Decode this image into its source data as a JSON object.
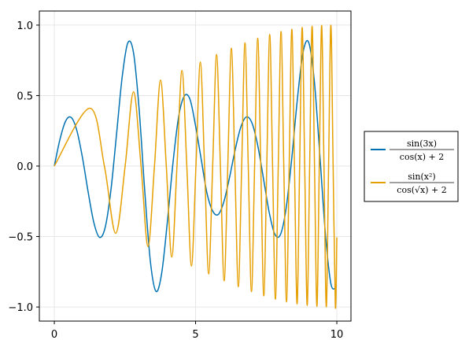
{
  "chart_data": {
    "type": "line",
    "grid": true,
    "xlim": [
      -0.53,
      10.5
    ],
    "ylim": [
      -1.1,
      1.1
    ],
    "xticks": [
      0,
      5,
      10
    ],
    "yticks": [
      {
        "value": 1.0,
        "label": "1.0"
      },
      {
        "value": 0.5,
        "label": "0.5"
      },
      {
        "value": 0.0,
        "label": "0.0"
      },
      {
        "value": -0.5,
        "label": "−0.5"
      },
      {
        "value": -1.0,
        "label": "−1.0"
      }
    ],
    "legend": "right",
    "series": [
      {
        "name": {
          "numerator": "sin(3x)",
          "denominator": "cos(x) + 2"
        },
        "color": "#0072b2",
        "x": [
          0,
          0.2,
          0.4,
          0.6,
          0.8,
          1.0,
          1.2,
          1.4,
          1.6,
          1.8,
          2.0,
          2.2,
          2.4,
          2.6,
          2.8,
          3.0,
          3.2,
          3.4,
          3.6,
          3.8,
          4.0,
          4.2,
          4.4,
          4.6,
          4.8,
          5.0,
          5.2,
          5.4,
          5.6,
          5.8,
          6.0,
          6.2,
          6.4,
          6.6,
          6.8,
          7.0,
          7.2,
          7.4,
          7.6,
          7.8,
          8.0,
          8.2,
          8.4,
          8.6,
          8.8,
          9.0,
          9.2,
          9.4,
          9.6,
          9.8,
          10.0
        ],
        "values": [
          0,
          0.1895,
          0.3191,
          0.3447,
          0.2505,
          0.0556,
          -0.1873,
          -0.4017,
          -0.5055,
          -0.4359,
          -0.1764,
          0.2207,
          0.6286,
          0.8735,
          0.8079,
          0.408,
          -0.174,
          -0.6774,
          -0.8891,
          -0.7604,
          -0.3985,
          0.0223,
          0.3498,
          0.4961,
          0.475,
          0.2848,
          0.0472,
          -0.1894,
          -0.3169,
          -0.344,
          -0.2537,
          -0.0826,
          0.1146,
          0.2757,
          0.3484,
          0.3037,
          0.1463,
          -0.0848,
          -0.3224,
          -0.4804,
          -0.4877,
          -0.3068,
          0.0451,
          0.4682,
          0.8027,
          0.8783,
          0.6091,
          0.0745,
          -0.4928,
          -0.8446,
          -0.8512
        ]
      },
      {
        "name": {
          "numerator": "sin(x²)",
          "denominator": "cos(√x) + 2"
        },
        "color": "#e69f00",
        "x": [
          0,
          1.2533,
          1.7725,
          2.1708,
          2.5066,
          2.8025,
          3.07,
          3.316,
          3.5449,
          3.7599,
          3.9633,
          4.1568,
          4.3417,
          4.5189,
          4.6895,
          4.8541,
          5.0133,
          5.1676,
          5.3174,
          5.4631,
          5.605,
          5.7434,
          5.8786,
          6.0107,
          6.14,
          6.2666,
          6.3907,
          6.5124,
          6.6319,
          6.7493,
          6.8647,
          6.9782,
          7.0898,
          7.1997,
          7.308,
          7.4147,
          7.5199,
          7.6236,
          7.7259,
          7.8269,
          7.9267,
          8.0251,
          8.1224,
          8.2185,
          8.3135,
          8.4075,
          8.5004,
          8.5923,
          8.6832,
          8.7732,
          8.8623,
          8.9505,
          9.0378,
          9.1243,
          9.21,
          9.2949,
          9.3789,
          9.4623,
          9.5449,
          9.6269,
          9.7081,
          9.7887,
          9.8686,
          9.9479,
          10.0
        ],
        "values": [
          0,
          0.4104,
          0,
          -0.4768,
          0,
          0.5271,
          0,
          -0.5706,
          0,
          0.6097,
          0,
          -0.6456,
          0,
          0.6788,
          0,
          -0.7096,
          0,
          0.7386,
          0,
          -0.7655,
          0,
          0.7905,
          0,
          -0.8139,
          0,
          0.8355,
          0,
          -0.8556,
          0,
          0.874,
          0,
          -0.8909,
          0,
          0.9065,
          0,
          -0.9206,
          0,
          0.9333,
          0,
          -0.9447,
          0,
          0.9548,
          0,
          -0.9639,
          0,
          0.9717,
          0,
          -0.9785,
          0,
          0.9842,
          0,
          -0.9889,
          0,
          0.9928,
          0,
          -0.9957,
          0,
          0.9979,
          0,
          -0.9992,
          0,
          0.9999,
          0,
          -0.9999,
          -0.506
        ]
      }
    ]
  }
}
